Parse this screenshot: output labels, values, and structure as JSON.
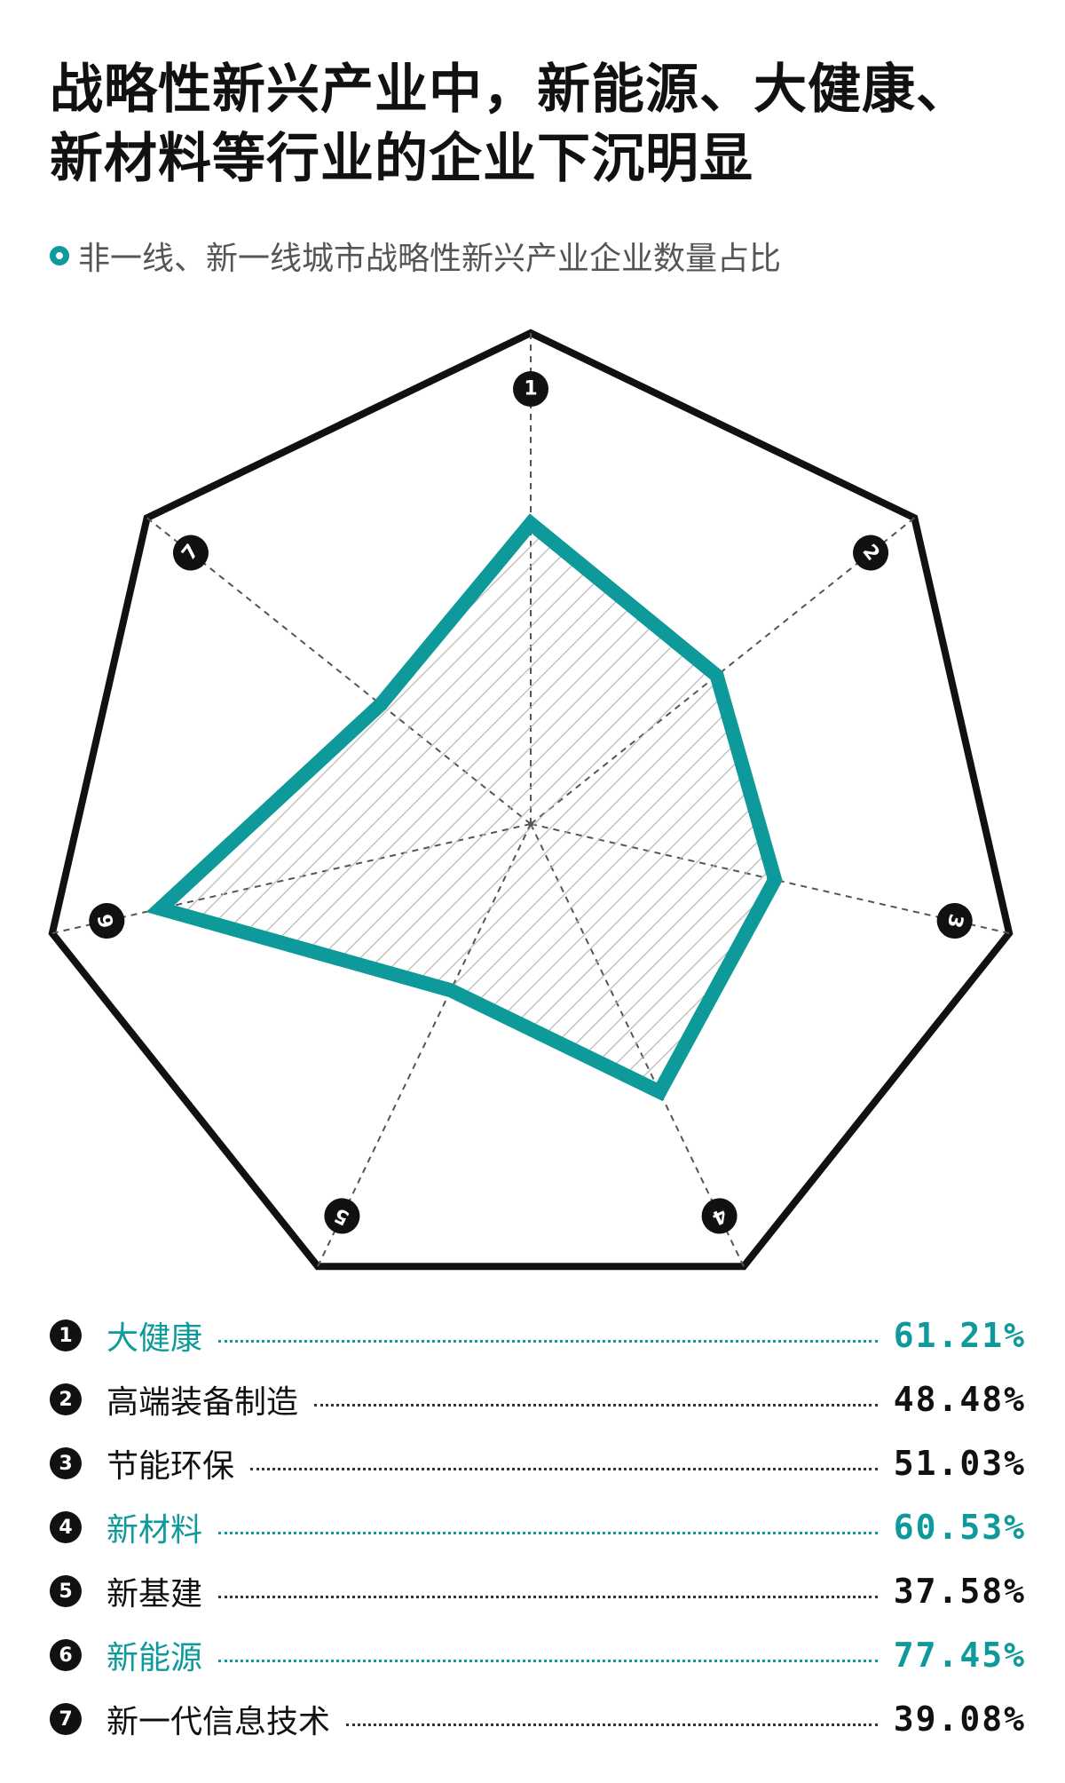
{
  "title": {
    "line1": "战略性新兴产业中，新能源、大健康、",
    "line2": "新材料等行业的企业下沉明显"
  },
  "subtitle": "非一线、新一线城市战略性新兴产业企业数量占比",
  "colors": {
    "accent": "#0e9a9a",
    "dark": "#111111"
  },
  "chart_data": {
    "type": "radar",
    "axes": [
      "1",
      "2",
      "3",
      "4",
      "5",
      "6",
      "7"
    ],
    "categories": [
      "大健康",
      "高端装备制造",
      "节能环保",
      "新材料",
      "新基建",
      "新能源",
      "新一代信息技术"
    ],
    "series": [
      {
        "values": [
          61.21,
          48.48,
          51.03,
          60.53,
          37.58,
          77.45,
          39.08
        ]
      }
    ],
    "rmax": 100,
    "grid": true
  },
  "rows": [
    {
      "num": "1",
      "label": "大健康",
      "value": "61.21%",
      "highlight": true
    },
    {
      "num": "2",
      "label": "高端装备制造",
      "value": "48.48%",
      "highlight": false
    },
    {
      "num": "3",
      "label": "节能环保",
      "value": "51.03%",
      "highlight": false
    },
    {
      "num": "4",
      "label": "新材料",
      "value": "60.53%",
      "highlight": true
    },
    {
      "num": "5",
      "label": "新基建",
      "value": "37.58%",
      "highlight": false
    },
    {
      "num": "6",
      "label": "新能源",
      "value": "77.45%",
      "highlight": true
    },
    {
      "num": "7",
      "label": "新一代信息技术",
      "value": "39.08%",
      "highlight": false
    }
  ]
}
